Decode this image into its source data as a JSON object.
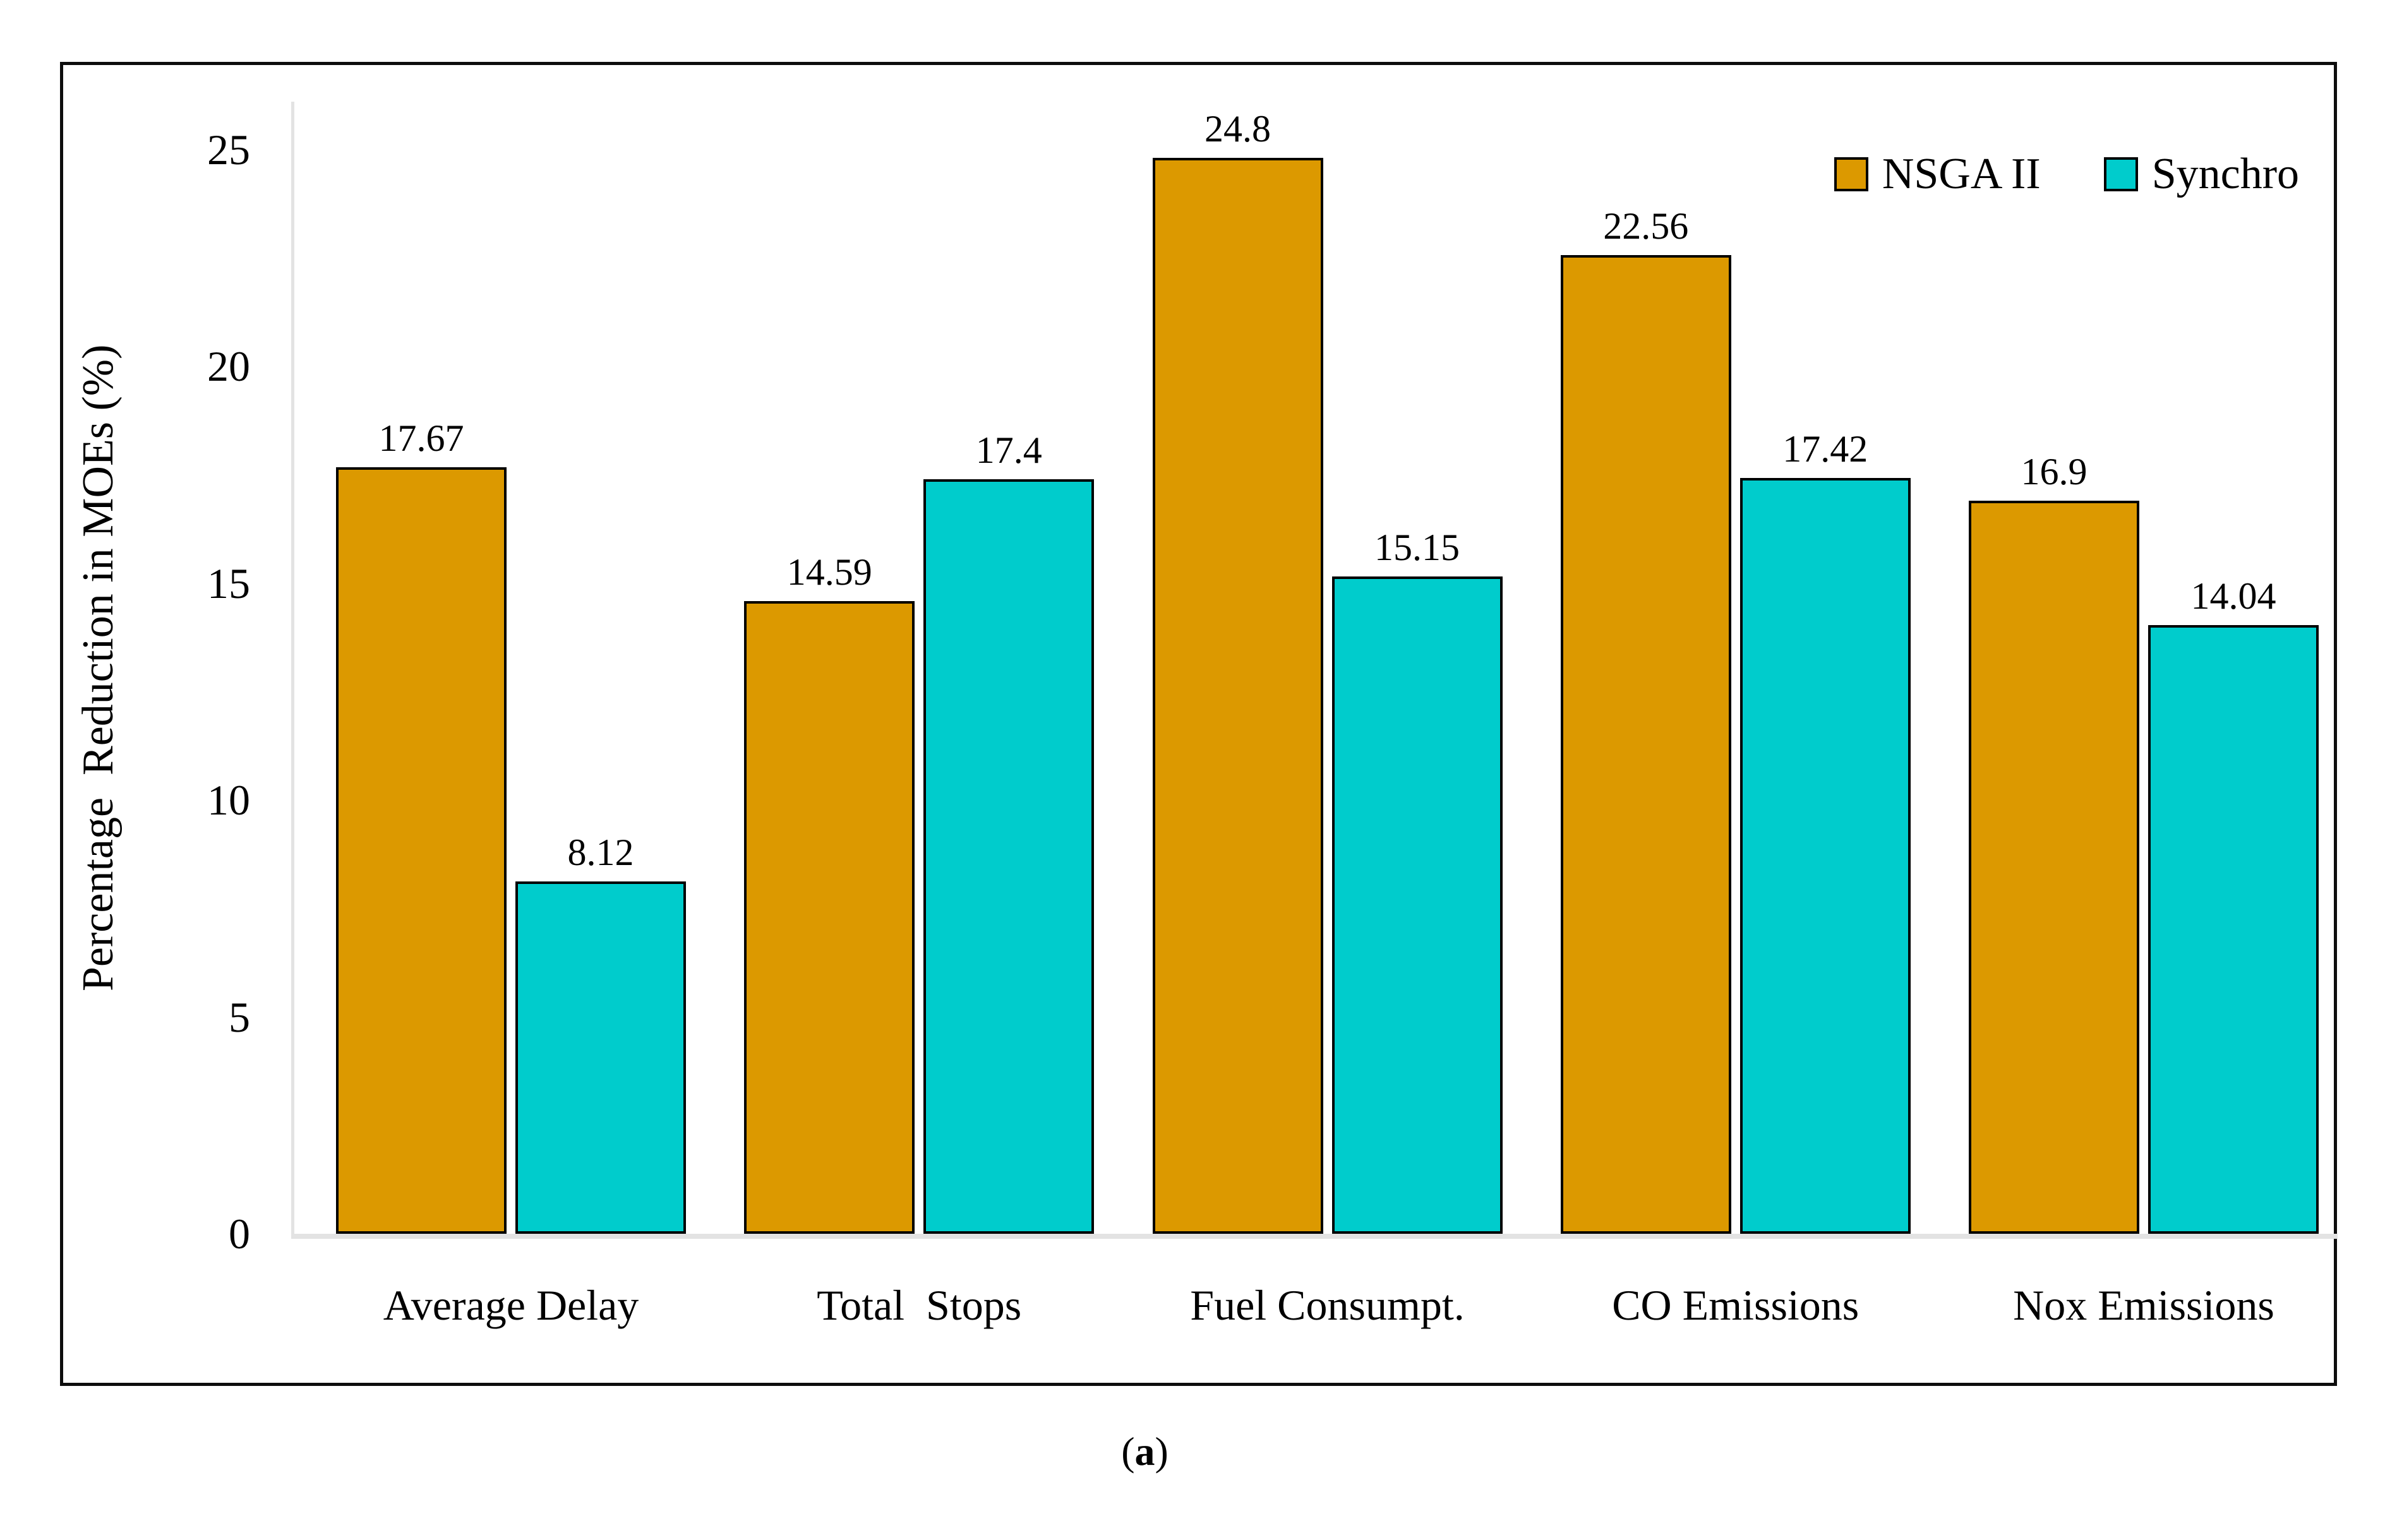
{
  "caption": {
    "prefix": "(",
    "letter": "a",
    "suffix": ")"
  },
  "chart_data": {
    "type": "bar",
    "title": "",
    "categories": [
      "Average Delay",
      "Total  Stops",
      "Fuel Consumpt.",
      "CO Emissions",
      "Nox Emissions"
    ],
    "series": [
      {
        "name": "NSGA II",
        "color": "#dc9900",
        "values": [
          17.67,
          14.59,
          24.8,
          22.56,
          16.9
        ]
      },
      {
        "name": "Synchro",
        "color": "#00cccc",
        "values": [
          8.12,
          17.4,
          15.15,
          17.42,
          14.04
        ]
      }
    ],
    "xlabel": "",
    "ylabel": "Percentage  Reduction in MOEs (%)",
    "yticks": [
      0,
      5,
      10,
      15,
      20,
      25
    ],
    "ylim": [
      0,
      26.1
    ],
    "grid": false,
    "legend_position": "top-right",
    "bar_border_color": "#000000",
    "axis_color": "#e3e3e3",
    "data_labels": true
  }
}
